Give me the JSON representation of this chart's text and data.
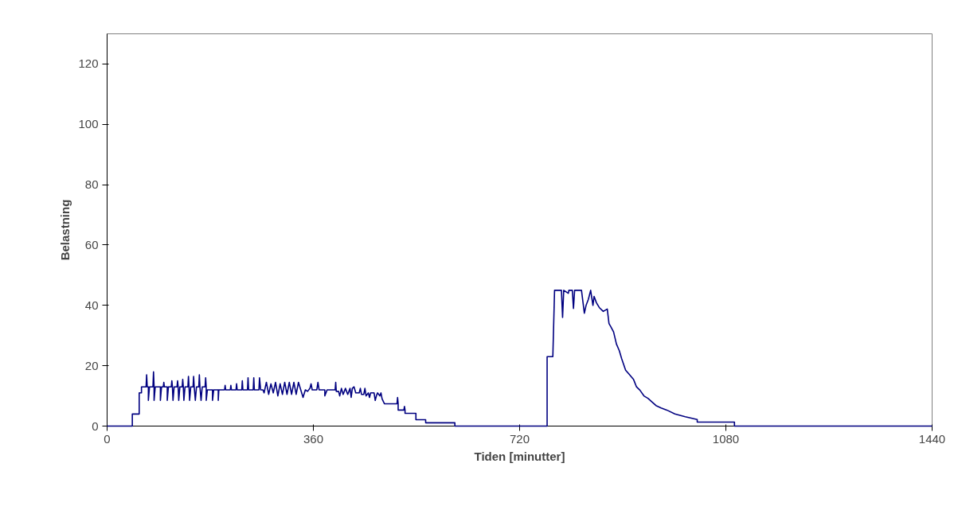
{
  "chart_data": {
    "type": "line",
    "xlabel": "Tiden [minutter]",
    "ylabel": "Belastning",
    "xlim": [
      0,
      1440
    ],
    "xticks": [
      0,
      360,
      720,
      1080,
      1440
    ],
    "ylim": [
      0,
      130
    ],
    "yticks": [
      0,
      20,
      40,
      60,
      80,
      100,
      120
    ],
    "grid": false,
    "marker": "none",
    "line_style": "solid",
    "series": [
      {
        "color": "#000080",
        "x": [
          0,
          44,
          44,
          56,
          56,
          60,
          60,
          68,
          69,
          70,
          72,
          72,
          74,
          80,
          81,
          82,
          82,
          84,
          93,
          93,
          95,
          98,
          99,
          100,
          105,
          105,
          107,
          112,
          113,
          114,
          115,
          117,
          122,
          123,
          124,
          125,
          127,
          131,
          132,
          133,
          134,
          136,
          141,
          142,
          143,
          144,
          146,
          150,
          151,
          152,
          154,
          156,
          160,
          161,
          162,
          164,
          166,
          171,
          172,
          173,
          173,
          175,
          184,
          184,
          186,
          194,
          194,
          195,
          205,
          206,
          207,
          215,
          216,
          217,
          225,
          226,
          227,
          235,
          236,
          237,
          245,
          246,
          247,
          255,
          256,
          257,
          265,
          266,
          268,
          272,
          274,
          278,
          282,
          286,
          290,
          294,
          298,
          302,
          306,
          310,
          314,
          318,
          322,
          326,
          330,
          334,
          338,
          342,
          346,
          350,
          354,
          356,
          358,
          366,
          368,
          370,
          380,
          380,
          384,
          398,
          399,
          400,
          404,
          406,
          409,
          412,
          416,
          420,
          424,
          426,
          428,
          431,
          434,
          440,
          442,
          444,
          448,
          450,
          452,
          456,
          458,
          460,
          466,
          468,
          470,
          472,
          476,
          478,
          480,
          484,
          506,
          507,
          508,
          508,
          518,
          519,
          520,
          520,
          539,
          539,
          556,
          556,
          607,
          607,
          768,
          768,
          778,
          781,
          793,
          795,
          797,
          805,
          806,
          812,
          814,
          816,
          828,
          833,
          836,
          840,
          844,
          848,
          850,
          854,
          859,
          866,
          873,
          876,
          879,
          884,
          889,
          894,
          898,
          905,
          912,
          919,
          924,
          930,
          937,
          944,
          958,
          967,
          977,
          991,
          1009,
          1030,
          1030,
          1095,
          1095,
          1440
        ],
        "values": [
          0,
          0,
          4,
          4,
          11,
          11,
          13,
          13,
          17,
          13,
          13,
          8.5,
          13,
          13,
          18,
          13,
          8.5,
          13,
          13,
          8.5,
          13,
          13,
          14.5,
          13,
          13,
          8.5,
          13,
          13,
          15,
          13,
          8.5,
          13,
          13,
          15,
          13,
          8.5,
          13,
          13,
          15.5,
          13,
          8.5,
          13,
          13,
          16.5,
          13,
          8.5,
          13,
          13,
          16.5,
          13,
          8.5,
          13,
          13,
          17,
          13,
          8.5,
          13,
          13,
          16,
          13,
          8.5,
          12,
          12,
          8.5,
          12,
          12,
          8.5,
          12,
          12,
          13.5,
          12,
          12,
          13.5,
          12,
          12,
          14,
          12,
          12,
          15,
          12,
          12,
          16,
          12,
          12,
          16,
          12,
          12,
          16,
          12,
          12,
          11,
          14.5,
          10.5,
          14,
          11,
          14.5,
          10,
          14,
          10.5,
          14.5,
          10.5,
          14.5,
          10.5,
          14.5,
          10.5,
          14.5,
          12,
          9.5,
          12,
          11.5,
          12.5,
          14,
          12,
          12,
          14.5,
          12,
          12,
          10,
          12,
          12,
          14.5,
          11.5,
          11.5,
          10,
          12.5,
          10.5,
          12.5,
          10.5,
          12.5,
          9.5,
          12.5,
          13,
          11,
          11,
          12.5,
          10.5,
          10.5,
          12.5,
          10,
          11,
          9.5,
          11,
          11,
          8.5,
          10,
          11,
          10,
          11,
          9,
          7.4,
          7.4,
          9.5,
          7.4,
          5.3,
          5.3,
          6.5,
          5.3,
          4.2,
          4.2,
          2.1,
          2.1,
          1.1,
          1.1,
          0,
          0,
          23,
          23,
          45,
          45,
          36,
          45,
          44,
          45,
          45,
          39,
          45,
          45,
          37.4,
          40,
          42,
          45,
          40,
          43,
          40.9,
          39.3,
          38,
          38.8,
          34,
          33,
          31.2,
          27.2,
          25,
          22.4,
          18.5,
          17,
          15.4,
          13,
          11.9,
          10,
          9.2,
          6.8,
          6,
          5.3,
          4,
          3.1,
          2.2,
          1.3,
          1.3,
          0,
          0
        ]
      }
    ]
  }
}
